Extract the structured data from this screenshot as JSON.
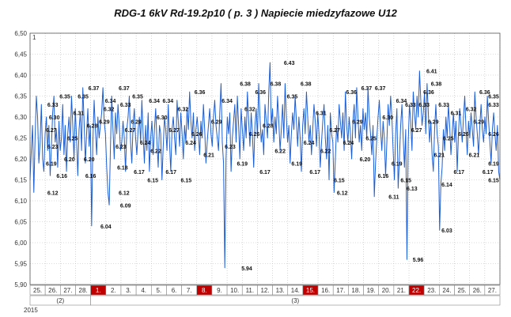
{
  "chart_data": {
    "type": "line",
    "title": "RDG-1 6kV Rd-19.2p10 ( p. 3 ) Napiecie miedzyfazowe U12",
    "xlabel": "",
    "ylabel": "",
    "ylim": [
      5.9,
      6.5
    ],
    "y_ticks": [
      "5,90",
      "5,95",
      "6,00",
      "6,05",
      "6,10",
      "6,15",
      "6,20",
      "6,25",
      "6,30",
      "6,35",
      "6,40",
      "6,45",
      "6,50"
    ],
    "grid": true,
    "series_color": "#1c5fd4",
    "axis_marker": "1",
    "x_axis": {
      "days": [
        "25.",
        "26.",
        "27.",
        "28.",
        "1.",
        "2.",
        "3.",
        "4.",
        "5.",
        "6.",
        "7.",
        "8.",
        "9.",
        "10.",
        "11.",
        "12.",
        "13.",
        "14.",
        "15.",
        "16.",
        "17.",
        "18.",
        "19.",
        "20.",
        "21.",
        "22.",
        "23.",
        "24.",
        "25.",
        "26.",
        "27."
      ],
      "highlighted_days": [
        "1.",
        "8.",
        "15.",
        "22."
      ],
      "highlight_color": "#c00000",
      "months": [
        {
          "label": "(2)",
          "first_day": 0,
          "last_day": 3
        },
        {
          "label": "(3)",
          "first_day": 4,
          "last_day": 30
        }
      ],
      "year": "2015"
    },
    "series": [
      {
        "values": [
          6.15,
          6.22,
          6.28,
          6.12,
          6.25,
          6.35,
          6.3,
          6.19,
          6.24,
          6.33,
          6.2,
          6.17,
          6.26,
          6.3,
          6.22,
          6.28,
          6.16,
          6.23,
          6.31,
          6.35,
          6.24,
          6.27,
          6.18,
          6.29,
          6.22,
          6.25,
          6.33,
          6.21,
          6.28,
          6.17,
          6.26,
          6.3,
          6.24,
          6.35,
          6.28,
          6.2,
          6.32,
          6.25,
          6.16,
          6.27,
          6.31,
          6.22,
          6.37,
          6.29,
          6.19,
          6.26,
          6.32,
          6.23,
          6.28,
          6.04,
          6.24,
          6.34,
          6.27,
          6.21,
          6.3,
          6.25,
          6.28,
          6.31,
          6.37,
          6.29,
          6.26,
          6.18,
          6.12,
          6.09,
          6.23,
          6.35,
          6.27,
          6.2,
          6.31,
          6.26,
          6.33,
          6.28,
          6.22,
          6.24,
          6.29,
          6.25,
          6.17,
          6.27,
          6.3,
          6.35,
          6.24,
          6.19,
          6.28,
          6.32,
          6.25,
          6.21,
          6.27,
          6.3,
          6.24,
          6.34,
          6.26,
          6.19,
          6.28,
          6.22,
          6.31,
          6.17,
          6.25,
          6.29,
          6.21,
          6.27,
          6.32,
          6.24,
          6.18,
          6.28,
          6.26,
          6.15,
          6.23,
          6.3,
          6.27,
          6.22,
          6.33,
          6.24,
          6.17,
          6.27,
          6.3,
          6.25,
          6.21,
          6.34,
          6.29,
          6.23,
          6.31,
          6.26,
          6.2,
          6.28,
          6.24,
          6.32,
          6.27,
          6.36,
          6.29,
          6.25,
          6.31,
          6.22,
          6.27,
          6.3,
          6.26,
          6.21,
          6.29,
          6.25,
          6.33,
          6.27,
          6.19,
          6.24,
          6.28,
          6.32,
          6.26,
          6.23,
          6.3,
          6.34,
          6.28,
          6.25,
          6.22,
          6.31,
          6.38,
          6.24,
          6.19,
          5.94,
          6.2,
          6.3,
          6.26,
          6.31,
          6.17,
          6.25,
          6.29,
          6.33,
          6.24,
          6.35,
          6.28,
          6.2,
          6.32,
          6.27,
          6.22,
          6.3,
          6.25,
          6.36,
          6.29,
          6.23,
          6.31,
          6.26,
          6.18,
          6.28,
          6.32,
          6.25,
          6.38,
          6.3,
          6.24,
          6.27,
          6.21,
          6.33,
          6.29,
          6.25,
          6.36,
          6.43,
          6.28,
          6.32,
          6.24,
          6.3,
          6.26,
          6.35,
          6.29,
          6.22,
          6.27,
          6.33,
          6.25,
          6.38,
          6.3,
          6.24,
          6.28,
          6.19,
          6.26,
          6.31,
          6.27,
          6.35,
          6.29,
          6.23,
          6.3,
          6.25,
          6.17,
          6.28,
          6.32,
          6.26,
          6.36,
          6.3,
          6.24,
          6.28,
          6.21,
          6.27,
          6.33,
          6.29,
          6.23,
          6.31,
          6.26,
          6.18,
          6.24,
          6.29,
          6.33,
          6.25,
          6.2,
          6.28,
          6.15,
          6.31,
          6.26,
          6.24,
          6.12,
          6.2,
          6.28,
          6.24,
          6.33,
          6.29,
          6.25,
          6.31,
          6.22,
          6.36,
          6.28,
          6.24,
          6.3,
          6.26,
          6.2,
          6.29,
          6.33,
          6.25,
          6.37,
          6.3,
          6.24,
          6.28,
          6.22,
          6.32,
          6.27,
          6.31,
          6.25,
          6.37,
          6.3,
          6.26,
          6.21,
          6.28,
          6.11,
          6.19,
          6.25,
          6.3,
          6.34,
          6.27,
          6.22,
          6.29,
          6.25,
          6.16,
          6.24,
          6.33,
          6.28,
          6.35,
          6.3,
          6.22,
          6.15,
          6.26,
          6.32,
          6.13,
          6.2,
          6.28,
          6.33,
          6.25,
          6.18,
          6.27,
          5.96,
          6.24,
          6.33,
          6.29,
          6.22,
          6.36,
          6.31,
          6.27,
          6.35,
          6.3,
          6.41,
          6.34,
          6.28,
          6.31,
          6.36,
          6.26,
          6.38,
          6.31,
          6.24,
          6.29,
          6.21,
          6.17,
          6.27,
          6.33,
          6.26,
          6.23,
          6.03,
          6.14,
          6.18,
          6.27,
          6.22,
          6.3,
          6.25,
          6.33,
          6.28,
          6.21,
          6.26,
          6.31,
          6.24,
          6.29,
          6.17,
          6.26,
          6.32,
          6.28,
          6.24,
          6.3,
          6.35,
          6.27,
          6.21,
          6.29,
          6.25,
          6.31,
          6.27,
          6.23,
          6.36,
          6.3,
          6.26,
          6.21,
          6.28,
          6.33,
          6.27,
          6.24,
          6.3,
          6.26,
          6.35,
          6.29,
          6.24,
          6.19,
          6.27,
          6.31,
          6.26,
          6.22,
          6.28,
          6.17,
          6.15
        ]
      }
    ],
    "data_labels": [
      {
        "t": 1.5,
        "v": 6.12
      },
      {
        "t": 1.4,
        "v": 6.19
      },
      {
        "t": 1.5,
        "v": 6.23
      },
      {
        "t": 1.4,
        "v": 6.27
      },
      {
        "t": 1.6,
        "v": 6.3
      },
      {
        "t": 1.5,
        "v": 6.33
      },
      {
        "t": 2.3,
        "v": 6.35
      },
      {
        "t": 2.1,
        "v": 6.16
      },
      {
        "t": 2.6,
        "v": 6.2
      },
      {
        "t": 2.8,
        "v": 6.25
      },
      {
        "t": 3.2,
        "v": 6.31
      },
      {
        "t": 3.5,
        "v": 6.35
      },
      {
        "t": 4.2,
        "v": 6.37
      },
      {
        "t": 4.0,
        "v": 6.16
      },
      {
        "t": 3.9,
        "v": 6.2
      },
      {
        "t": 4.1,
        "v": 6.28
      },
      {
        "t": 5.0,
        "v": 6.04
      },
      {
        "t": 5.3,
        "v": 6.34
      },
      {
        "t": 5.2,
        "v": 6.32
      },
      {
        "t": 4.9,
        "v": 6.29
      },
      {
        "t": 6.2,
        "v": 6.37
      },
      {
        "t": 6.1,
        "v": 6.18
      },
      {
        "t": 6.2,
        "v": 6.12
      },
      {
        "t": 6.3,
        "v": 6.09
      },
      {
        "t": 6.0,
        "v": 6.23
      },
      {
        "t": 6.3,
        "v": 6.33
      },
      {
        "t": 6.6,
        "v": 6.27
      },
      {
        "t": 7.1,
        "v": 6.35
      },
      {
        "t": 7.2,
        "v": 6.17
      },
      {
        "t": 7.0,
        "v": 6.29
      },
      {
        "t": 7.6,
        "v": 6.24
      },
      {
        "t": 8.2,
        "v": 6.34
      },
      {
        "t": 8.1,
        "v": 6.15
      },
      {
        "t": 8.3,
        "v": 6.22
      },
      {
        "t": 8.7,
        "v": 6.3
      },
      {
        "t": 9.1,
        "v": 6.34
      },
      {
        "t": 9.3,
        "v": 6.17
      },
      {
        "t": 9.5,
        "v": 6.27
      },
      {
        "t": 10.1,
        "v": 6.32
      },
      {
        "t": 10.3,
        "v": 6.15
      },
      {
        "t": 10.6,
        "v": 6.24
      },
      {
        "t": 11.2,
        "v": 6.36
      },
      {
        "t": 11.0,
        "v": 6.26
      },
      {
        "t": 11.8,
        "v": 6.21
      },
      {
        "t": 12.3,
        "v": 6.29
      },
      {
        "t": 13.0,
        "v": 6.34
      },
      {
        "t": 13.2,
        "v": 6.23
      },
      {
        "t": 14.2,
        "v": 6.38
      },
      {
        "t": 14.0,
        "v": 6.19
      },
      {
        "t": 14.3,
        "v": 5.94
      },
      {
        "t": 14.5,
        "v": 6.32
      },
      {
        "t": 14.8,
        "v": 6.26
      },
      {
        "t": 15.2,
        "v": 6.36
      },
      {
        "t": 15.5,
        "v": 6.17
      },
      {
        "t": 15.7,
        "v": 6.28
      },
      {
        "t": 16.2,
        "v": 6.38
      },
      {
        "t": 16.5,
        "v": 6.22
      },
      {
        "t": 17.1,
        "v": 6.43
      },
      {
        "t": 17.3,
        "v": 6.35
      },
      {
        "t": 17.6,
        "v": 6.19
      },
      {
        "t": 18.2,
        "v": 6.38
      },
      {
        "t": 18.4,
        "v": 6.24
      },
      {
        "t": 18.8,
        "v": 6.17
      },
      {
        "t": 19.2,
        "v": 6.31
      },
      {
        "t": 19.5,
        "v": 6.22
      },
      {
        "t": 20.1,
        "v": 6.27
      },
      {
        "t": 20.4,
        "v": 6.15
      },
      {
        "t": 20.6,
        "v": 6.12
      },
      {
        "t": 21.2,
        "v": 6.36
      },
      {
        "t": 21.0,
        "v": 6.24
      },
      {
        "t": 21.6,
        "v": 6.29
      },
      {
        "t": 22.2,
        "v": 6.37
      },
      {
        "t": 22.1,
        "v": 6.2
      },
      {
        "t": 22.5,
        "v": 6.25
      },
      {
        "t": 23.1,
        "v": 6.37
      },
      {
        "t": 23.3,
        "v": 6.16
      },
      {
        "t": 23.6,
        "v": 6.3
      },
      {
        "t": 24.0,
        "v": 6.11
      },
      {
        "t": 24.2,
        "v": 6.19
      },
      {
        "t": 24.5,
        "v": 6.34
      },
      {
        "t": 24.8,
        "v": 6.15
      },
      {
        "t": 25.1,
        "v": 6.33
      },
      {
        "t": 25.2,
        "v": 6.13
      },
      {
        "t": 25.6,
        "v": 5.96
      },
      {
        "t": 25.5,
        "v": 6.27
      },
      {
        "t": 26.0,
        "v": 6.33
      },
      {
        "t": 26.3,
        "v": 6.36
      },
      {
        "t": 26.5,
        "v": 6.41
      },
      {
        "t": 26.8,
        "v": 6.38
      },
      {
        "t": 26.6,
        "v": 6.29
      },
      {
        "t": 27.0,
        "v": 6.21
      },
      {
        "t": 27.3,
        "v": 6.33
      },
      {
        "t": 27.5,
        "v": 6.14
      },
      {
        "t": 27.5,
        "v": 6.03
      },
      {
        "t": 27.6,
        "v": 6.25
      },
      {
        "t": 28.1,
        "v": 6.31
      },
      {
        "t": 28.3,
        "v": 6.17
      },
      {
        "t": 28.6,
        "v": 6.26
      },
      {
        "t": 29.1,
        "v": 6.32
      },
      {
        "t": 29.3,
        "v": 6.21
      },
      {
        "t": 29.6,
        "v": 6.29
      },
      {
        "t": 30.0,
        "v": 6.36
      },
      {
        "t": 30.2,
        "v": 6.17
      },
      {
        "t": 30.6,
        "v": 6.33
      },
      {
        "t": 30.8,
        "v": 6.19
      },
      {
        "t": 31.3,
        "v": 6.35
      },
      {
        "t": 31.2,
        "v": 6.26
      },
      {
        "t": 31.4,
        "v": 6.15
      }
    ]
  }
}
